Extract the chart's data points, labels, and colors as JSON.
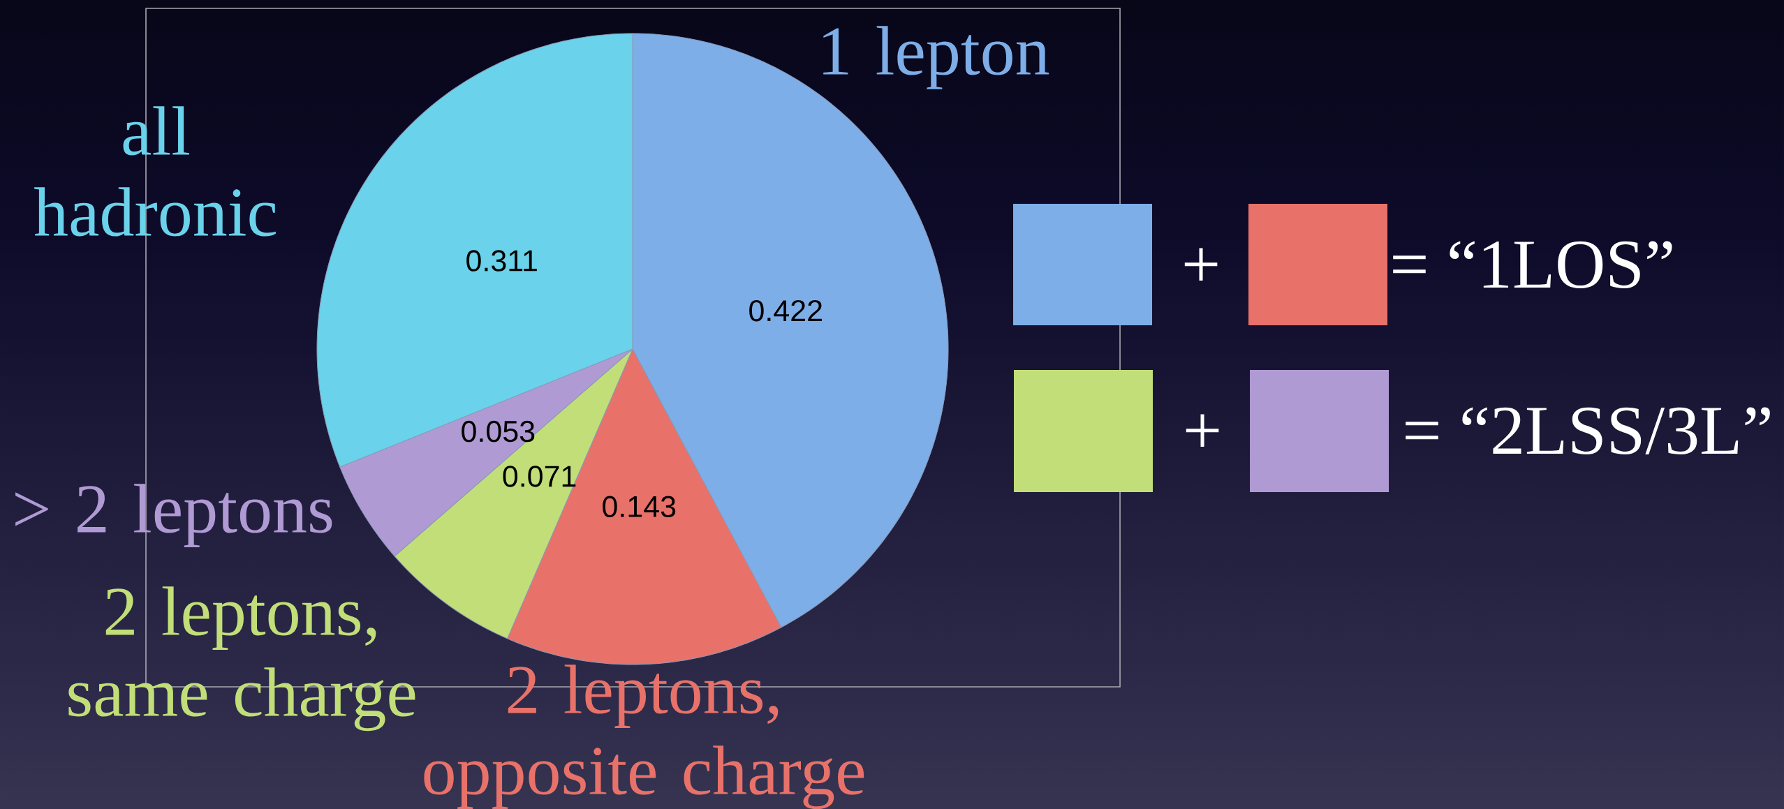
{
  "chart_data": {
    "type": "pie",
    "categories": [
      "1 lepton",
      "2 leptons, opposite charge",
      "2 leptons, same charge",
      "> 2 leptons",
      "all hadronic"
    ],
    "values": [
      0.422,
      0.143,
      0.071,
      0.053,
      0.311
    ],
    "colors": [
      "#7eaee8",
      "#e8726a",
      "#c2de78",
      "#b09ad4",
      "#6ad2ea"
    ],
    "data_labels": true,
    "annotations": [
      "+",
      "= “1LOS”",
      "+",
      "= “2LSS/3L”"
    ]
  }
}
